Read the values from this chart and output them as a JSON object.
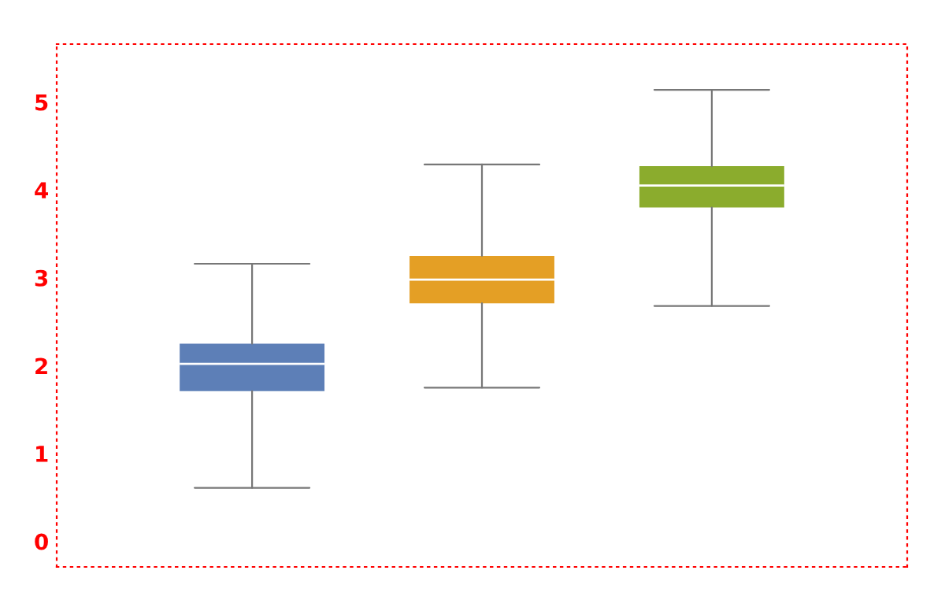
{
  "chart_data": {
    "type": "box",
    "categories": [
      null,
      null,
      null
    ],
    "boxes": [
      {
        "low": 0.61,
        "q1": 1.71,
        "median": 2.02,
        "q3": 2.25,
        "high": 3.16
      },
      {
        "low": 1.75,
        "q1": 2.71,
        "median": 2.98,
        "q3": 3.25,
        "high": 4.29
      },
      {
        "low": 2.68,
        "q1": 3.8,
        "median": 4.05,
        "q3": 4.27,
        "high": 5.14
      }
    ],
    "colors": [
      "#5d7fb7",
      "#e49f25",
      "#8bac2d"
    ],
    "ylim": [
      -0.29,
      5.66
    ],
    "yticks": [
      0,
      1,
      2,
      3,
      4,
      5
    ],
    "tick_labels": "y",
    "grid": false
  }
}
